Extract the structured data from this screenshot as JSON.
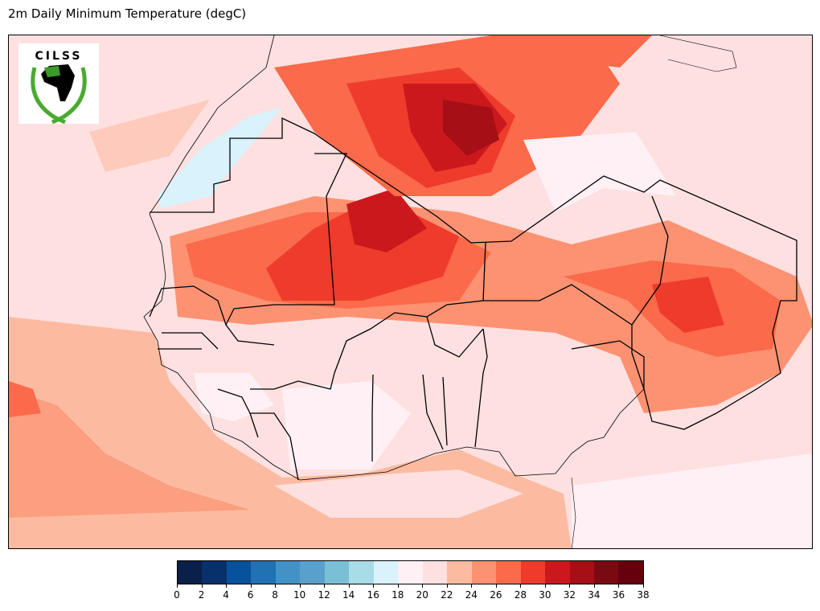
{
  "title": "2m Daily Minimum Temperature (degC)",
  "logo": {
    "text": "CILSS",
    "icon": "cilss-logo"
  },
  "colorbar": {
    "ticks": [
      "0",
      "2",
      "4",
      "6",
      "8",
      "10",
      "12",
      "14",
      "16",
      "18",
      "20",
      "22",
      "24",
      "26",
      "28",
      "30",
      "32",
      "34",
      "36",
      "38"
    ],
    "colors": [
      "#08204a",
      "#08306b",
      "#08519c",
      "#2171b5",
      "#4292c6",
      "#5aa0cc",
      "#7bbfd6",
      "#a8dce6",
      "#d9f2fb",
      "#fff0f5",
      "#fee0e0",
      "#fcbba1",
      "#fc9272",
      "#fb6a4a",
      "#ef3b2c",
      "#cb181d",
      "#a50f15",
      "#7a0a12",
      "#67000d"
    ]
  }
}
